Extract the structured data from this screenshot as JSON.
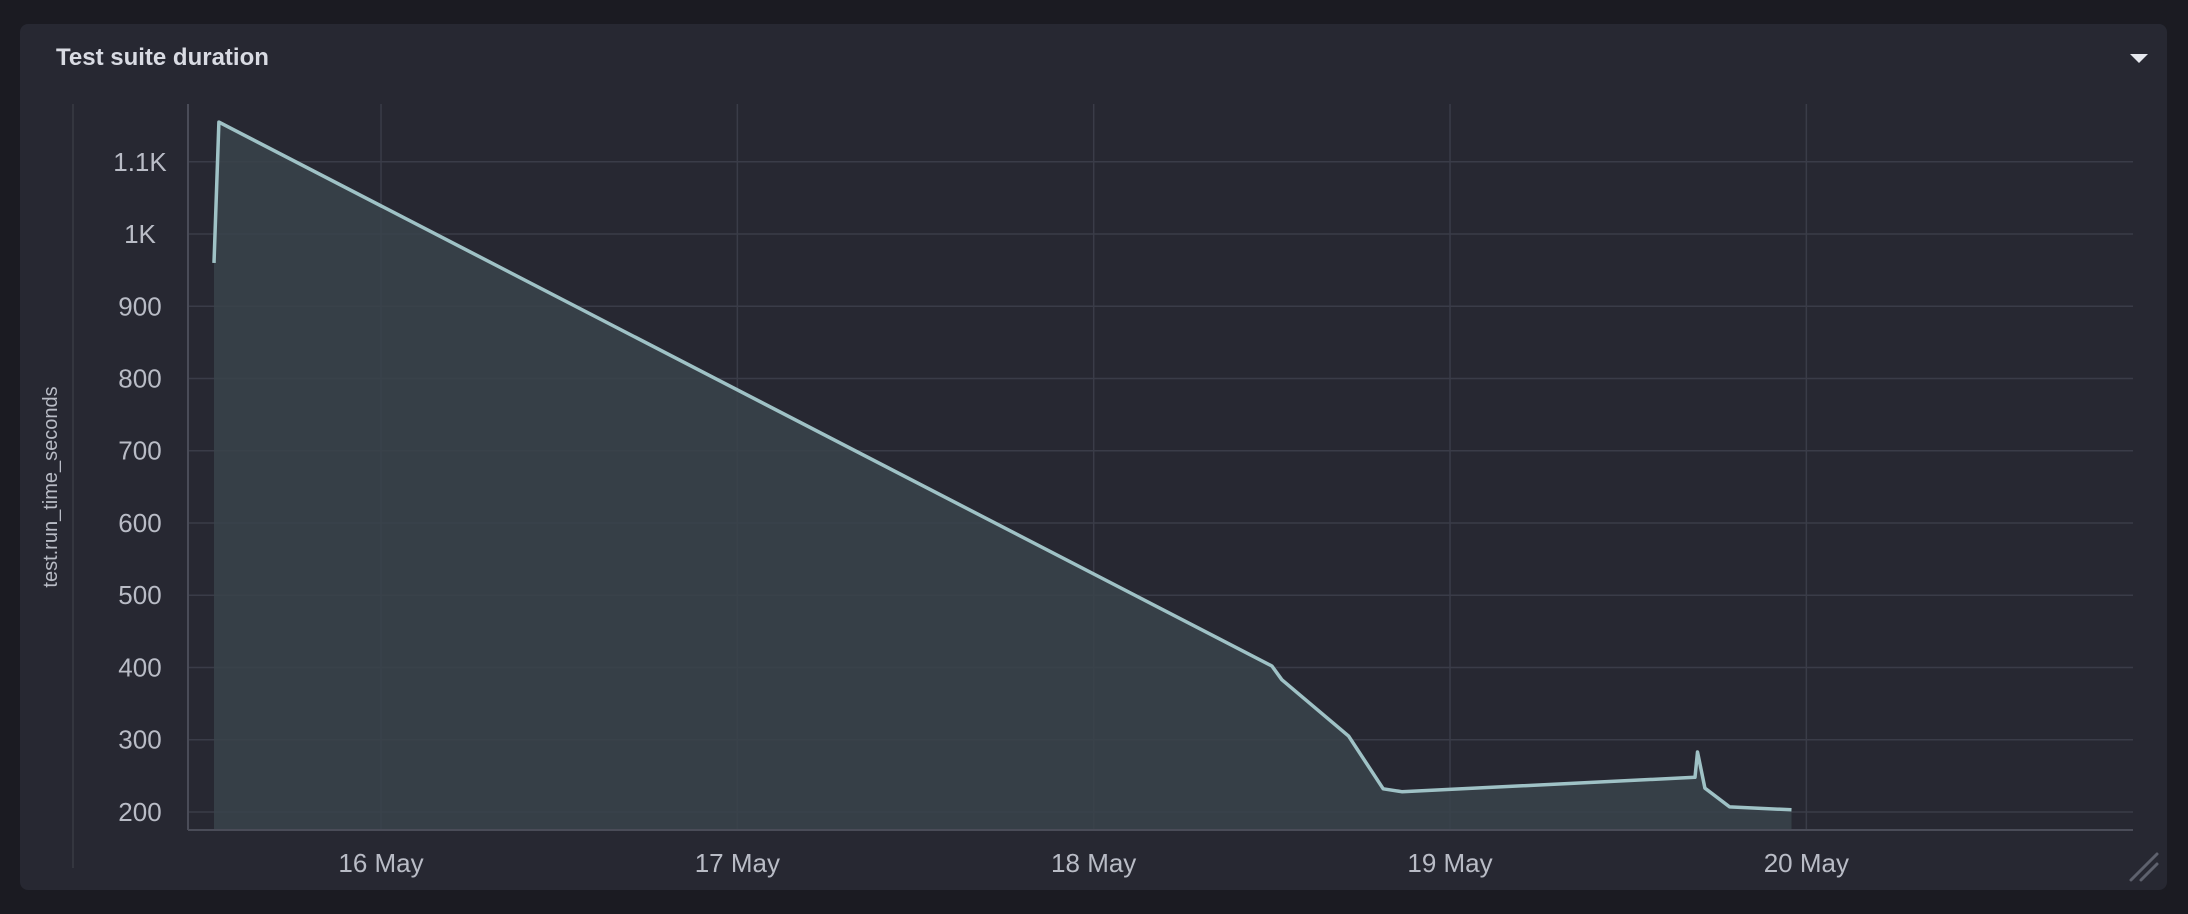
{
  "panel": {
    "title": "Test suite duration",
    "menu_icon": "caret-down-icon",
    "resize_icon": "resize-handle-icon"
  },
  "colors": {
    "background": "#1b1b22",
    "panel": "#272832",
    "line": "#9fc2c6",
    "area_fill": "#3a434b",
    "grid": "#3a3c48",
    "axis_text": "#b9bcc6"
  },
  "chart_data": {
    "type": "area",
    "title": "",
    "xlabel": "",
    "ylabel": "test.run_time_seconds",
    "x_tick_labels": [
      "16 May",
      "17 May",
      "18 May",
      "19 May",
      "20 May"
    ],
    "y_tick_labels": [
      "200",
      "300",
      "400",
      "500",
      "600",
      "700",
      "800",
      "900",
      "1K",
      "1.1K"
    ],
    "xlim": [
      "2024-05-15 11:00",
      "2024-05-20 22:00"
    ],
    "ylim": [
      175,
      1180
    ],
    "grid": true,
    "legend": "none",
    "series": [
      {
        "x": [
          "2024-05-15 12:45",
          "2024-05-15 13:05",
          "2024-05-18 12:00",
          "2024-05-18 12:40",
          "2024-05-18 17:10",
          "2024-05-18 19:30",
          "2024-05-18 20:45",
          "2024-05-19 16:30",
          "2024-05-19 16:40",
          "2024-05-19 17:10",
          "2024-05-19 18:50",
          "2024-05-19 23:00"
        ],
        "values": [
          960,
          1155,
          402,
          383,
          305,
          232,
          228,
          248,
          283,
          233,
          207,
          203
        ]
      }
    ]
  }
}
